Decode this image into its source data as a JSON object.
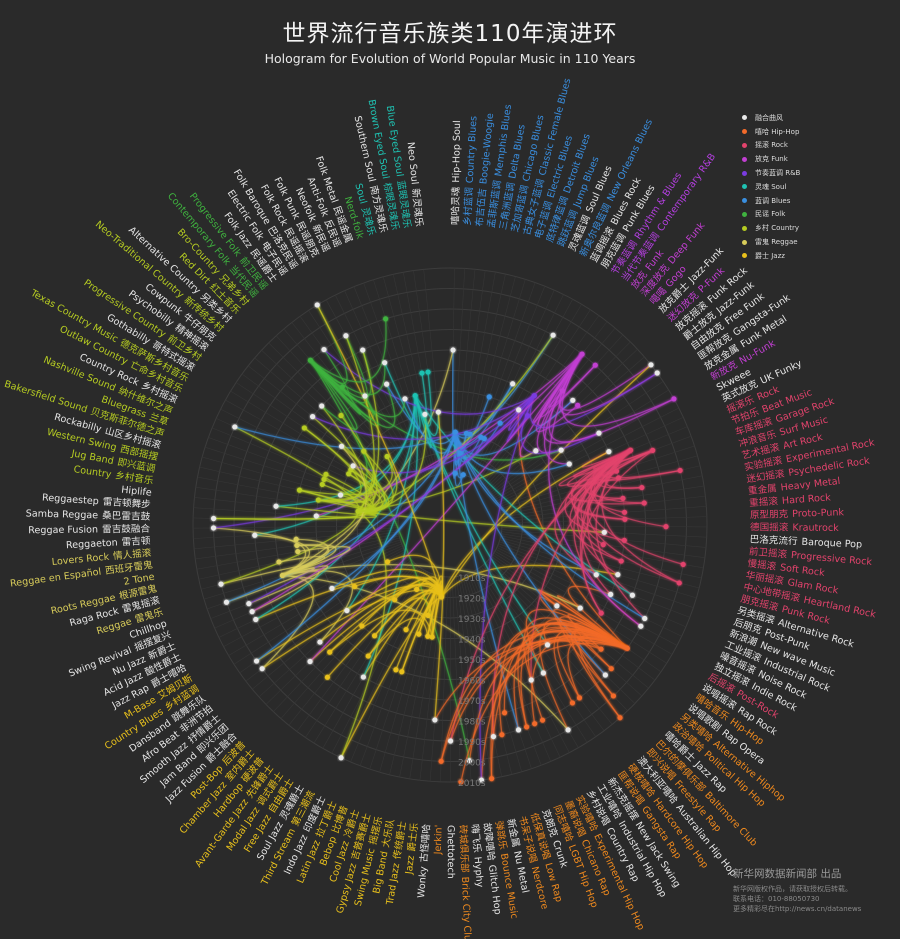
{
  "title": "世界流行音乐族类110年演进环",
  "subtitle": "Hologram for Evolution of World Popular Music in 110 Years",
  "decades": [
    "1910s",
    "1920s",
    "1930s",
    "1940s",
    "1950s",
    "1960s",
    "1970s",
    "1980s",
    "1990s",
    "2000s",
    "2010s"
  ],
  "legend": [
    {
      "key": "fusion",
      "label": "融合曲风",
      "color": "#e8e8e8"
    },
    {
      "key": "hiphop",
      "label": "嘻哈 Hip-Hop",
      "color": "#f26a2a"
    },
    {
      "key": "rock",
      "label": "摇滚 Rock",
      "color": "#e2436c"
    },
    {
      "key": "funk",
      "label": "放克 Funk",
      "color": "#c23fd2"
    },
    {
      "key": "rnb",
      "label": "节奏蓝调 R&B",
      "color": "#7a3be0"
    },
    {
      "key": "soul",
      "label": "灵魂 Soul",
      "color": "#1fc2b2"
    },
    {
      "key": "blues",
      "label": "蓝调 Blues",
      "color": "#3a8fe0"
    },
    {
      "key": "folk",
      "label": "民谣 Folk",
      "color": "#3fb23f"
    },
    {
      "key": "country",
      "label": "乡村 Country",
      "color": "#b6cc22"
    },
    {
      "key": "reggae",
      "label": "雷鬼 Reggae",
      "color": "#d8cc5a"
    },
    {
      "key": "jazz",
      "label": "爵士 Jazz",
      "color": "#e8c01c"
    }
  ],
  "label_colors": {
    "fusion": "#e6e6e6",
    "hiphop": "#f08a1e",
    "rock": "#e2436c",
    "funk": "#c23fd2",
    "rnb": "#b43fe0",
    "soul": "#1fc2b2",
    "blues": "#3a8fe0",
    "folk": "#3fb23f",
    "country": "#b6cc22",
    "reggae": "#d8cc5a",
    "jazz": "#e8c01c"
  },
  "genres": [
    {
      "en": "Hip-Hop Soul",
      "cn": "嘻哈灵魂",
      "c": "fusion"
    },
    {
      "en": "Country Blues",
      "cn": "乡村蓝调",
      "c": "blues"
    },
    {
      "en": "Boogie-Woogie",
      "cn": "布吉伍吉",
      "c": "blues"
    },
    {
      "en": "Memphis Blues",
      "cn": "孟菲斯蓝调",
      "c": "blues"
    },
    {
      "en": "Delta Blues",
      "cn": "三角洲蓝调",
      "c": "blues"
    },
    {
      "en": "Chicago Blues",
      "cn": "芝加哥蓝调",
      "c": "blues"
    },
    {
      "en": "Classic Female Blues",
      "cn": "古典女子蓝调",
      "c": "blues"
    },
    {
      "en": "Electric Blues",
      "cn": "电子蓝调",
      "c": "blues"
    },
    {
      "en": "Detroit Blues",
      "cn": "底特律蓝调",
      "c": "blues"
    },
    {
      "en": "Jump Blues",
      "cn": "跳跃蓝调",
      "c": "blues"
    },
    {
      "en": "Soul Blues",
      "cn": "灵魂蓝调",
      "c": "fusion"
    },
    {
      "en": "New Orleans Blues",
      "cn": "新奥尔良蓝调",
      "c": "blues"
    },
    {
      "en": "Blues Rock",
      "cn": "蓝调摇滚",
      "c": "fusion"
    },
    {
      "en": "Punk Blues",
      "cn": "朋克蓝调",
      "c": "fusion"
    },
    {
      "en": "Rhythm & Blues",
      "cn": "节奏蓝调",
      "c": "rnb"
    },
    {
      "en": "Contemporary R&B",
      "cn": "当代节奏蓝调",
      "c": "rnb"
    },
    {
      "en": "Funk",
      "cn": "放克",
      "c": "funk"
    },
    {
      "en": "Deep Funk",
      "cn": "深度放克",
      "c": "funk"
    },
    {
      "en": "Gogo",
      "cn": "噶噶",
      "c": "funk"
    },
    {
      "en": "Jazz-Funk",
      "cn": "放克爵士",
      "c": "fusion"
    },
    {
      "en": "P-Funk",
      "cn": "迷幻放克",
      "c": "funk"
    },
    {
      "en": "Funk Rock",
      "cn": "放克摇滚",
      "c": "fusion"
    },
    {
      "en": "Jazz-Funk",
      "cn": "爵士放克",
      "c": "fusion"
    },
    {
      "en": "Free Funk",
      "cn": "自由放克",
      "c": "fusion"
    },
    {
      "en": "Gangsta-Funk",
      "cn": "匪帮放克",
      "c": "fusion"
    },
    {
      "en": "Funk Metal",
      "cn": "放克金属",
      "c": "fusion"
    },
    {
      "en": "Nu-Funk",
      "cn": "新放克",
      "c": "funk"
    },
    {
      "en": "Skweee",
      "cn": "",
      "c": "fusion"
    },
    {
      "en": "UK Funky",
      "cn": "英式放克",
      "c": "fusion"
    },
    {
      "en": "Rock",
      "cn": "摇滚乐",
      "c": "rock"
    },
    {
      "en": "Beat Music",
      "cn": "节拍乐",
      "c": "rock"
    },
    {
      "en": "Garage Rock",
      "cn": "车库摇滚",
      "c": "rock"
    },
    {
      "en": "Surf Music",
      "cn": "冲浪音乐",
      "c": "rock"
    },
    {
      "en": "Art Rock",
      "cn": "艺术摇滚",
      "c": "rock"
    },
    {
      "en": "Experimental Rock",
      "cn": "实验摇滚",
      "c": "rock"
    },
    {
      "en": "Psychedelic Rock",
      "cn": "迷幻摇滚",
      "c": "rock"
    },
    {
      "en": "Heavy Metal",
      "cn": "重金属",
      "c": "rock"
    },
    {
      "en": "Hard Rock",
      "cn": "重摇滚",
      "c": "rock"
    },
    {
      "en": "Proto-Punk",
      "cn": "原型朋克",
      "c": "rock"
    },
    {
      "en": "Krautrock",
      "cn": "德国摇滚",
      "c": "rock"
    },
    {
      "en": "Baroque Pop",
      "cn": "巴洛克流行",
      "c": "fusion"
    },
    {
      "en": "Progressive Rock",
      "cn": "前卫摇滚",
      "c": "rock"
    },
    {
      "en": "Soft Rock",
      "cn": "慢摇滚",
      "c": "rock"
    },
    {
      "en": "Glam Rock",
      "cn": "华丽摇滚",
      "c": "rock"
    },
    {
      "en": "Heartland Rock",
      "cn": "中心地带摇滚",
      "c": "rock"
    },
    {
      "en": "Punk Rock",
      "cn": "朋克摇滚",
      "c": "rock"
    },
    {
      "en": "Alternative Rock",
      "cn": "另类摇滚",
      "c": "fusion"
    },
    {
      "en": "Post-Punk",
      "cn": "后朋克",
      "c": "fusion"
    },
    {
      "en": "New wave Music",
      "cn": "新浪潮",
      "c": "fusion"
    },
    {
      "en": "Industrial Rock",
      "cn": "工业摇滚",
      "c": "fusion"
    },
    {
      "en": "Noise Rock",
      "cn": "噪音摇滚",
      "c": "fusion"
    },
    {
      "en": "Indie Rock",
      "cn": "独立摇滚",
      "c": "fusion"
    },
    {
      "en": "Post-Rock",
      "cn": "后摇滚",
      "c": "rock"
    },
    {
      "en": "Rap Rock",
      "cn": "说唱摇滚",
      "c": "fusion"
    },
    {
      "en": "Hip-Hop",
      "cn": "嘻哈音乐",
      "c": "hiphop"
    },
    {
      "en": "Rap Opera",
      "cn": "说唱歌剧",
      "c": "fusion"
    },
    {
      "en": "Alternative Hiphop",
      "cn": "另类嘻哈",
      "c": "hiphop"
    },
    {
      "en": "Political Hip Hop",
      "cn": "政治嘻哈",
      "c": "hiphop"
    },
    {
      "en": "Jazz Rap",
      "cn": "嘻哈爵士",
      "c": "fusion"
    },
    {
      "en": "Baltimore Club",
      "cn": "巴尔的摩俱乐部",
      "c": "hiphop"
    },
    {
      "en": "Freestyle Rap",
      "cn": "即兴说唱",
      "c": "hiphop"
    },
    {
      "en": "Australian Hip Hop",
      "cn": "澳大利亚嘻哈",
      "c": "fusion"
    },
    {
      "en": "Hardcore Hip Hop",
      "cn": "硬核嘻哈",
      "c": "hiphop"
    },
    {
      "en": "Gangsta Rap",
      "cn": "匪帮说唱",
      "c": "hiphop"
    },
    {
      "en": "New Jack Swing",
      "cn": "新杰克摇摆",
      "c": "fusion"
    },
    {
      "en": "Industrial Hip Hop",
      "cn": "工业嘻哈",
      "c": "fusion"
    },
    {
      "en": "Country Rap",
      "cn": "乡村说唱",
      "c": "fusion"
    },
    {
      "en": "Experimental Hip Hop",
      "cn": "实验嘻哈",
      "c": "hiphop"
    },
    {
      "en": "Chicano Rap",
      "cn": "墨裔说唱",
      "c": "hiphop"
    },
    {
      "en": "LGBT Hip Hop",
      "cn": "同志嘻哈",
      "c": "hiphop"
    },
    {
      "en": "Crunk",
      "cn": "克朗克",
      "c": "fusion"
    },
    {
      "en": "Low Rap",
      "cn": "低保真说唱",
      "c": "hiphop"
    },
    {
      "en": "Nerdcore",
      "cn": "书呆子说唱",
      "c": "hiphop"
    },
    {
      "en": "Nu Metal",
      "cn": "新金属",
      "c": "fusion"
    },
    {
      "en": "Bounce Music",
      "cn": "弹跳乐",
      "c": "hiphop"
    },
    {
      "en": "Glitch Hop",
      "cn": "故障嘻哈",
      "c": "fusion"
    },
    {
      "en": "Hyphy",
      "cn": "嗨飞乐",
      "c": "fusion"
    },
    {
      "en": "Brick City Club",
      "cn": "砖城俱乐部",
      "c": "hiphop"
    },
    {
      "en": "Ghettotech",
      "cn": "",
      "c": "fusion"
    },
    {
      "en": "Jerkin'",
      "cn": "",
      "c": "hiphop"
    },
    {
      "en": "Wonky",
      "cn": "古怪嘻哈",
      "c": "fusion"
    },
    {
      "en": "Jazz",
      "cn": "爵士乐",
      "c": "jazz"
    },
    {
      "en": "Trad Jazz",
      "cn": "传统爵士",
      "c": "jazz"
    },
    {
      "en": "Big Band",
      "cn": "大乐队",
      "c": "jazz"
    },
    {
      "en": "Swing Music",
      "cn": "摇摆乐",
      "c": "jazz"
    },
    {
      "en": "Gypsy Jazz",
      "cn": "吉普赛爵士",
      "c": "jazz"
    },
    {
      "en": "Cool Jazz",
      "cn": "冷爵士",
      "c": "jazz"
    },
    {
      "en": "Bebop",
      "cn": "比博普",
      "c": "jazz"
    },
    {
      "en": "Latin Jazz",
      "cn": "拉丁爵士",
      "c": "jazz"
    },
    {
      "en": "Indo Jazz",
      "cn": "印度爵士",
      "c": "fusion"
    },
    {
      "en": "Third Stream",
      "cn": "第三潮流",
      "c": "jazz"
    },
    {
      "en": "Soul Jazz",
      "cn": "灵魂爵士",
      "c": "fusion"
    },
    {
      "en": "Free Jazz",
      "cn": "自由爵士",
      "c": "jazz"
    },
    {
      "en": "Modal Jazz",
      "cn": "调式爵士",
      "c": "jazz"
    },
    {
      "en": "Avant-Garde Jazz",
      "cn": "先锋爵士",
      "c": "jazz"
    },
    {
      "en": "Hardbop",
      "cn": "硬波普",
      "c": "jazz"
    },
    {
      "en": "Chamber Jazz",
      "cn": "室内爵士",
      "c": "jazz"
    },
    {
      "en": "Post-Bop",
      "cn": "后波普",
      "c": "jazz"
    },
    {
      "en": "Jazz Fusion",
      "cn": "爵士融合",
      "c": "fusion"
    },
    {
      "en": "Jam Band",
      "cn": "即兴乐团",
      "c": "fusion"
    },
    {
      "en": "Smooth Jazz",
      "cn": "抒情爵士",
      "c": "fusion"
    },
    {
      "en": "Afro Beat",
      "cn": "非洲节拍",
      "c": "fusion"
    },
    {
      "en": "Dansband",
      "cn": "跳舞乐队",
      "c": "fusion"
    },
    {
      "en": "Country Blues",
      "cn": "乡村蓝调",
      "c": "jazz"
    },
    {
      "en": "M-Base",
      "cn": "艾姆贝斯",
      "c": "jazz"
    },
    {
      "en": "Jazz Rap",
      "cn": "爵士嘻哈",
      "c": "fusion"
    },
    {
      "en": "Acid Jazz",
      "cn": "酸性爵士",
      "c": "fusion"
    },
    {
      "en": "Nu Jazz",
      "cn": "新爵士",
      "c": "fusion"
    },
    {
      "en": "Swing Revival",
      "cn": "摇摆复兴",
      "c": "fusion"
    },
    {
      "en": "Chillhop",
      "cn": "",
      "c": "fusion"
    },
    {
      "en": "Reggae",
      "cn": "雷鬼乐",
      "c": "reggae"
    },
    {
      "en": "Raga Rock",
      "cn": "雷鬼摇滚",
      "c": "fusion"
    },
    {
      "en": "Roots Reggae",
      "cn": "根源雷鬼",
      "c": "reggae"
    },
    {
      "en": "2 Tone",
      "cn": "",
      "c": "reggae"
    },
    {
      "en": "Reggae en Español",
      "cn": "西班牙雷鬼",
      "c": "reggae"
    },
    {
      "en": "Lovers Rock",
      "cn": "情人摇滚",
      "c": "reggae"
    },
    {
      "en": "Reggaeton",
      "cn": "雷吉顿",
      "c": "fusion"
    },
    {
      "en": "Reggae Fusion",
      "cn": "雷吉鼓融合",
      "c": "fusion"
    },
    {
      "en": "Samba Reggae",
      "cn": "桑巴雷吉鼓",
      "c": "fusion"
    },
    {
      "en": "Reggaestep",
      "cn": "雷吉顿舞步",
      "c": "fusion"
    },
    {
      "en": "Hiplife",
      "cn": "",
      "c": "fusion"
    },
    {
      "en": "Country",
      "cn": "乡村音乐",
      "c": "country"
    },
    {
      "en": "Jug Band",
      "cn": "即兴蓝调",
      "c": "country"
    },
    {
      "en": "Western Swing",
      "cn": "西部摇摆",
      "c": "country"
    },
    {
      "en": "Rockabilly",
      "cn": "山区乡村摇滚",
      "c": "fusion"
    },
    {
      "en": "Bakersfield Sound",
      "cn": "贝克斯菲尔德之声",
      "c": "country"
    },
    {
      "en": "Bluegrass",
      "cn": "兰草",
      "c": "country"
    },
    {
      "en": "Nashville Sound",
      "cn": "纳什维尔之声",
      "c": "country"
    },
    {
      "en": "Country Rock",
      "cn": "乡村摇滚",
      "c": "fusion"
    },
    {
      "en": "Outlaw Country",
      "cn": "亡命乡村音乐",
      "c": "country"
    },
    {
      "en": "Texas Country Music",
      "cn": "德克萨斯乡村音乐",
      "c": "country"
    },
    {
      "en": "Gothabilly",
      "cn": "哥特式摇滚",
      "c": "fusion"
    },
    {
      "en": "Progressive Country",
      "cn": "前卫乡村",
      "c": "country"
    },
    {
      "en": "Psychobilly",
      "cn": "精神摇滚",
      "c": "fusion"
    },
    {
      "en": "Cowpunk",
      "cn": "牛仔朋克",
      "c": "fusion"
    },
    {
      "en": "Neo-Traditional Country",
      "cn": "新传统乡村",
      "c": "country"
    },
    {
      "en": "Alternative Country",
      "cn": "另类乡村",
      "c": "fusion"
    },
    {
      "en": "Red Dirt",
      "cn": "红土音乐",
      "c": "country"
    },
    {
      "en": "Bro-Country",
      "cn": "兄弟乡村",
      "c": "country"
    },
    {
      "en": "Contemporary Folk",
      "cn": "当代民谣",
      "c": "folk"
    },
    {
      "en": "Progressive Folk",
      "cn": "前卫民谣",
      "c": "folk"
    },
    {
      "en": "Folk Jazz",
      "cn": "民谣爵士",
      "c": "fusion"
    },
    {
      "en": "Electric Folk",
      "cn": "电子民谣",
      "c": "fusion"
    },
    {
      "en": "Folk Baroque",
      "cn": "巴洛克民谣",
      "c": "fusion"
    },
    {
      "en": "Folk Rock",
      "cn": "民谣摇滚",
      "c": "fusion"
    },
    {
      "en": "Folk Punk",
      "cn": "民谣朋克",
      "c": "fusion"
    },
    {
      "en": "Neofolk",
      "cn": "新民谣",
      "c": "fusion"
    },
    {
      "en": "Anti-Folk",
      "cn": "反民谣",
      "c": "fusion"
    },
    {
      "en": "Folk Metal",
      "cn": "民谣金属",
      "c": "fusion"
    },
    {
      "en": "Nerd-folk",
      "cn": "",
      "c": "folk"
    },
    {
      "en": "Soul",
      "cn": "灵魂乐",
      "c": "soul"
    },
    {
      "en": "Southern Soul",
      "cn": "南方灵魂乐",
      "c": "fusion"
    },
    {
      "en": "Brown Eyed Soul",
      "cn": "棕眼灵魂乐",
      "c": "soul"
    },
    {
      "en": "Blue Eyed Soul",
      "cn": "蓝眼灵魂乐",
      "c": "soul"
    },
    {
      "en": "Neo Soul",
      "cn": "新灵魂乐",
      "c": "fusion"
    }
  ],
  "footer": {
    "org": "新华网数据新闻部 出品",
    "line1": "新华网版权作品，请获取授权后转载。",
    "line2": "联系电话：010-88050730",
    "line3": "更多精彩尽在http://news.cn/datanews"
  }
}
